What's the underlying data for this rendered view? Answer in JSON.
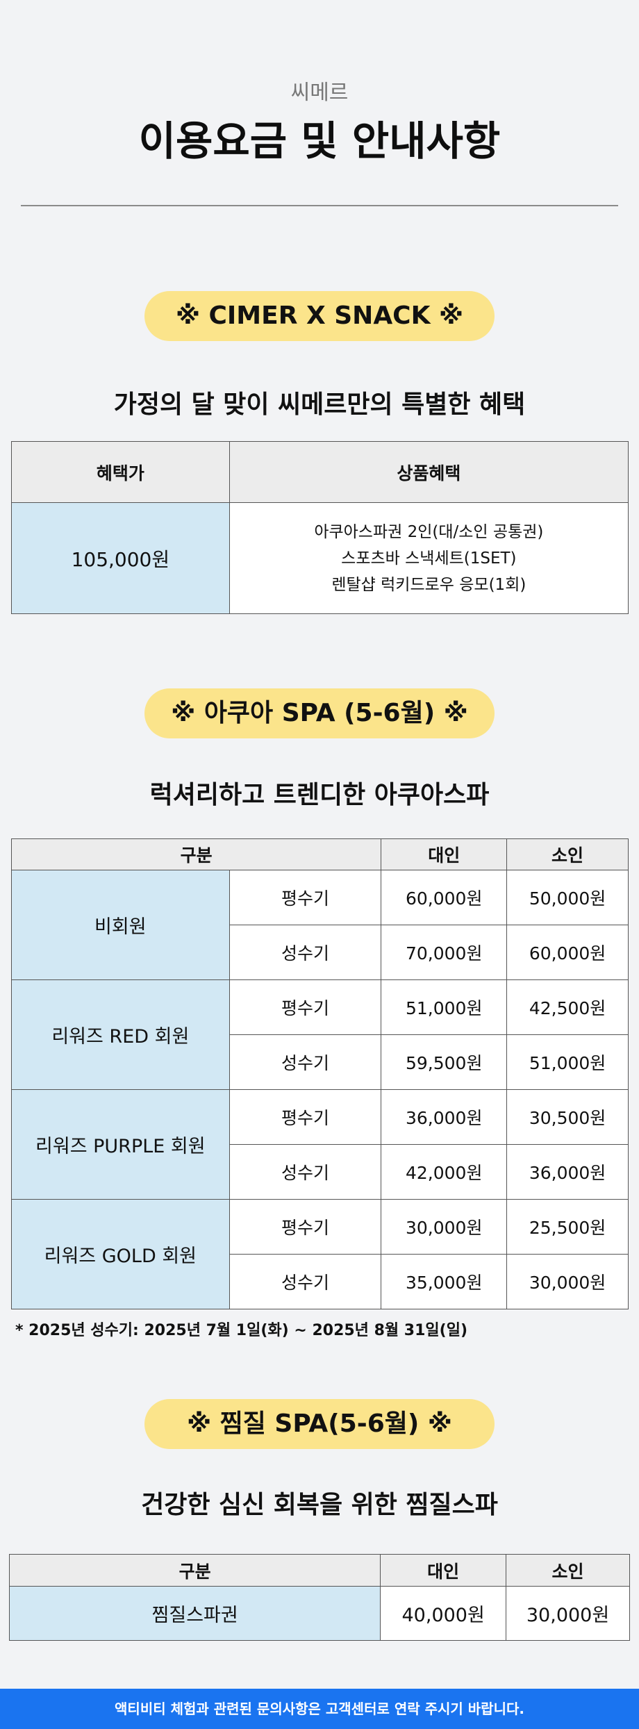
{
  "header": {
    "brand": "씨메르",
    "title": "이용요금 및 안내사항"
  },
  "section1": {
    "pill": "※  CIMER X SNACK  ※",
    "heading": "가정의 달 맞이 씨메르만의 특별한 혜택",
    "columns": [
      "혜택가",
      "상품혜택"
    ],
    "price": "105,000원",
    "benefits": [
      "아쿠아스파권 2인(대/소인 공통권)",
      "스포츠바 스낵세트(1SET)",
      "렌탈샵 럭키드로우 응모(1회)"
    ]
  },
  "section2": {
    "pill": "※  아쿠아 SPA (5-6월)  ※",
    "heading": "럭셔리하고 트렌디한 아쿠아스파",
    "columns": [
      "구분",
      "대인",
      "소인"
    ],
    "groups": [
      {
        "name": "비회원",
        "rows": [
          {
            "season": "평수기",
            "adult": "60,000원",
            "child": "50,000원"
          },
          {
            "season": "성수기",
            "adult": "70,000원",
            "child": "60,000원"
          }
        ]
      },
      {
        "name": "리워즈 RED 회원",
        "rows": [
          {
            "season": "평수기",
            "adult": "51,000원",
            "child": "42,500원"
          },
          {
            "season": "성수기",
            "adult": "59,500원",
            "child": "51,000원"
          }
        ]
      },
      {
        "name": "리워즈 PURPLE 회원",
        "rows": [
          {
            "season": "평수기",
            "adult": "36,000원",
            "child": "30,500원"
          },
          {
            "season": "성수기",
            "adult": "42,000원",
            "child": "36,000원"
          }
        ]
      },
      {
        "name": "리워즈 GOLD 회원",
        "rows": [
          {
            "season": "평수기",
            "adult": "30,000원",
            "child": "25,500원"
          },
          {
            "season": "성수기",
            "adult": "35,000원",
            "child": "30,000원"
          }
        ]
      }
    ],
    "note": "* 2025년 성수기: 2025년 7월 1일(화) ~ 2025년 8월 31일(일)"
  },
  "section3": {
    "pill": "※  찜질 SPA(5-6월)  ※",
    "heading": "건강한 심신 회복을 위한 찜질스파",
    "columns": [
      "구분",
      "대인",
      "소인"
    ],
    "row": {
      "name": "찜질스파권",
      "adult": "40,000원",
      "child": "30,000원"
    }
  },
  "footer": {
    "text": "액티비티 체험과 관련된 문의사항은 고객센터로 연락 주시기 바랍니다."
  },
  "colors": {
    "pill": "#fbe48b",
    "highlight_cell": "#d2e8f4",
    "footer_bg": "#1a74f0"
  }
}
